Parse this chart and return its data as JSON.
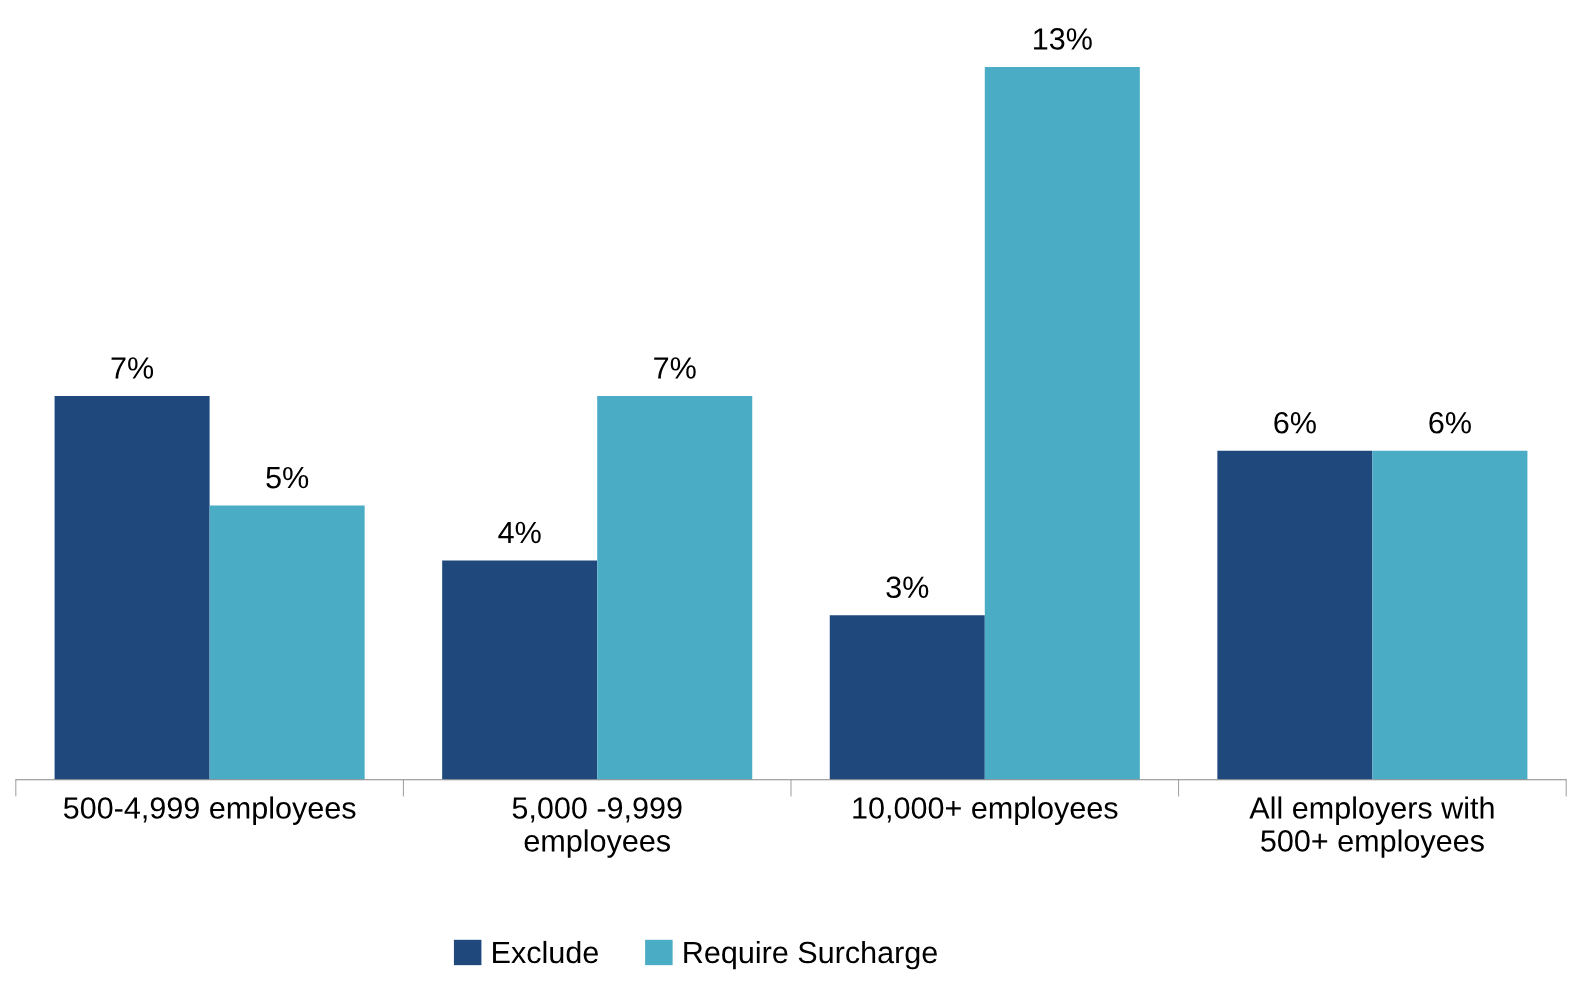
{
  "chart_data": {
    "type": "bar",
    "categories": [
      "500-4,999 employees",
      "5,000 -9,999\nemployees",
      "10,000+ employees",
      "All employers with\n500+ employees"
    ],
    "series": [
      {
        "name": "Exclude",
        "color": "#1f497d",
        "values": [
          7,
          4,
          3,
          6
        ],
        "value_labels": [
          "7%",
          "4%",
          "3%",
          "6%"
        ]
      },
      {
        "name": "Require Surcharge",
        "color": "#4bacc6",
        "values": [
          5,
          7,
          13,
          6
        ],
        "value_labels": [
          "5%",
          "7%",
          "13%",
          "6%"
        ]
      }
    ],
    "legend": "bottom",
    "grid": false
  }
}
